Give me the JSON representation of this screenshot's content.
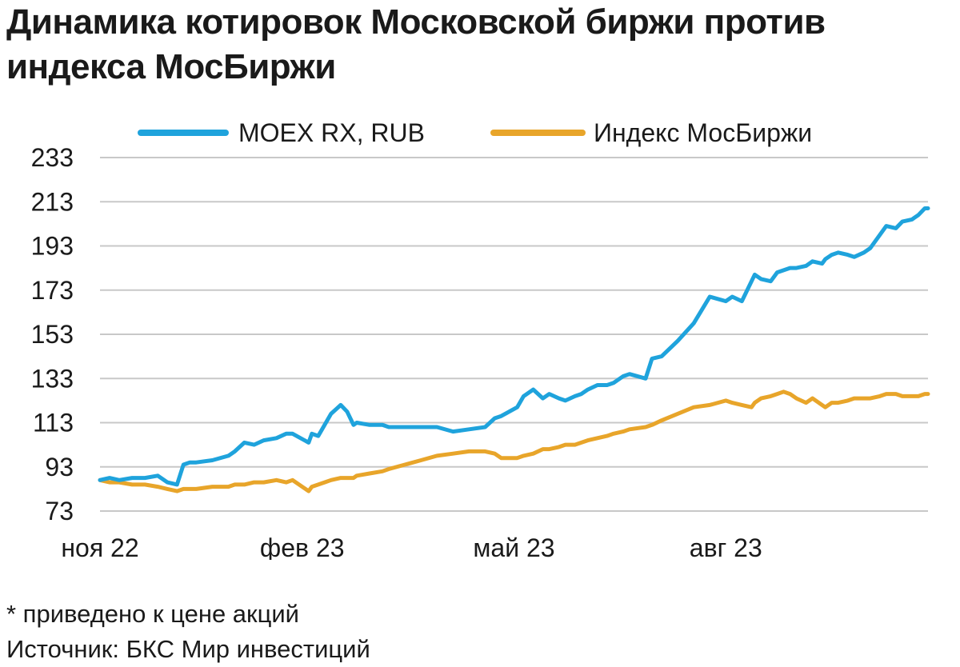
{
  "title": "Динамика котировок Московской биржи против индекса МосБиржи",
  "footnote": "* приведено к цене акций",
  "source": "Источник: БКС Мир инвестиций",
  "colors": {
    "moex": "#1fa3dc",
    "index": "#e8a52a",
    "grid": "#c8c8c8"
  },
  "chart_data": {
    "type": "line",
    "title": "Динамика котировок Московской биржи против индекса МосБиржи",
    "xlabel": "",
    "ylabel": "",
    "ylim": [
      73,
      233
    ],
    "yticks": [
      233,
      213,
      193,
      173,
      153,
      133,
      113,
      93,
      73
    ],
    "xtick_labels": [
      "ноя 22",
      "фев 23",
      "май 23",
      "авг 23"
    ],
    "xtick_positions": [
      0,
      63,
      129,
      195
    ],
    "grid": true,
    "legend_position": "top",
    "series": [
      {
        "name": "MOEX RX, RUB",
        "x": [
          0,
          3,
          6,
          10,
          14,
          18,
          21,
          24,
          26,
          28,
          30,
          35,
          40,
          42,
          45,
          48,
          51,
          55,
          58,
          60,
          65,
          66,
          68,
          70,
          72,
          75,
          77,
          79,
          80,
          84,
          88,
          90,
          95,
          100,
          105,
          110,
          115,
          120,
          123,
          125,
          130,
          132,
          135,
          138,
          140,
          143,
          145,
          148,
          150,
          152,
          155,
          158,
          160,
          163,
          165,
          170,
          172,
          175,
          180,
          185,
          190,
          195,
          197,
          200,
          203,
          204,
          206,
          209,
          211,
          213,
          215,
          217,
          220,
          222,
          225,
          226,
          228,
          230,
          233,
          235,
          238,
          240,
          243,
          245,
          248,
          250,
          253,
          255,
          257,
          258
        ],
        "y": [
          87,
          88,
          87,
          88,
          88,
          89,
          86,
          85,
          94,
          95,
          95,
          96,
          98,
          100,
          104,
          103,
          105,
          106,
          108,
          108,
          104,
          108,
          107,
          112,
          117,
          121,
          118,
          112,
          113,
          112,
          112,
          111,
          111,
          111,
          111,
          109,
          110,
          111,
          115,
          116,
          120,
          125,
          128,
          124,
          126,
          124,
          123,
          125,
          126,
          128,
          130,
          130,
          131,
          134,
          135,
          133,
          142,
          143,
          150,
          158,
          170,
          168,
          170,
          168,
          177,
          180,
          178,
          177,
          181,
          182,
          183,
          183,
          184,
          186,
          185,
          187,
          189,
          190,
          189,
          188,
          190,
          192,
          198,
          202,
          201,
          204,
          205,
          207,
          210,
          210
        ]
      },
      {
        "name": "Индекс МосБиржи",
        "x": [
          0,
          3,
          6,
          10,
          14,
          18,
          21,
          24,
          26,
          28,
          30,
          35,
          40,
          42,
          45,
          48,
          51,
          55,
          58,
          60,
          65,
          66,
          68,
          70,
          72,
          75,
          77,
          79,
          80,
          84,
          88,
          90,
          95,
          100,
          105,
          110,
          115,
          120,
          123,
          125,
          130,
          132,
          135,
          138,
          140,
          143,
          145,
          148,
          150,
          152,
          155,
          158,
          160,
          163,
          165,
          170,
          172,
          175,
          180,
          185,
          190,
          195,
          197,
          200,
          203,
          204,
          206,
          209,
          211,
          213,
          215,
          217,
          220,
          222,
          225,
          226,
          228,
          230,
          233,
          235,
          238,
          240,
          243,
          245,
          248,
          250,
          253,
          255,
          257,
          258
        ],
        "y": [
          87,
          86,
          86,
          85,
          85,
          84,
          83,
          82,
          83,
          83,
          83,
          84,
          84,
          85,
          85,
          86,
          86,
          87,
          86,
          87,
          82,
          84,
          85,
          86,
          87,
          88,
          88,
          88,
          89,
          90,
          91,
          92,
          94,
          96,
          98,
          99,
          100,
          100,
          99,
          97,
          97,
          98,
          99,
          101,
          101,
          102,
          103,
          103,
          104,
          105,
          106,
          107,
          108,
          109,
          110,
          111,
          112,
          114,
          117,
          120,
          121,
          123,
          122,
          121,
          120,
          122,
          124,
          125,
          126,
          127,
          126,
          124,
          122,
          124,
          121,
          120,
          122,
          122,
          123,
          124,
          124,
          124,
          125,
          126,
          126,
          125,
          125,
          125,
          126,
          126
        ]
      }
    ]
  }
}
